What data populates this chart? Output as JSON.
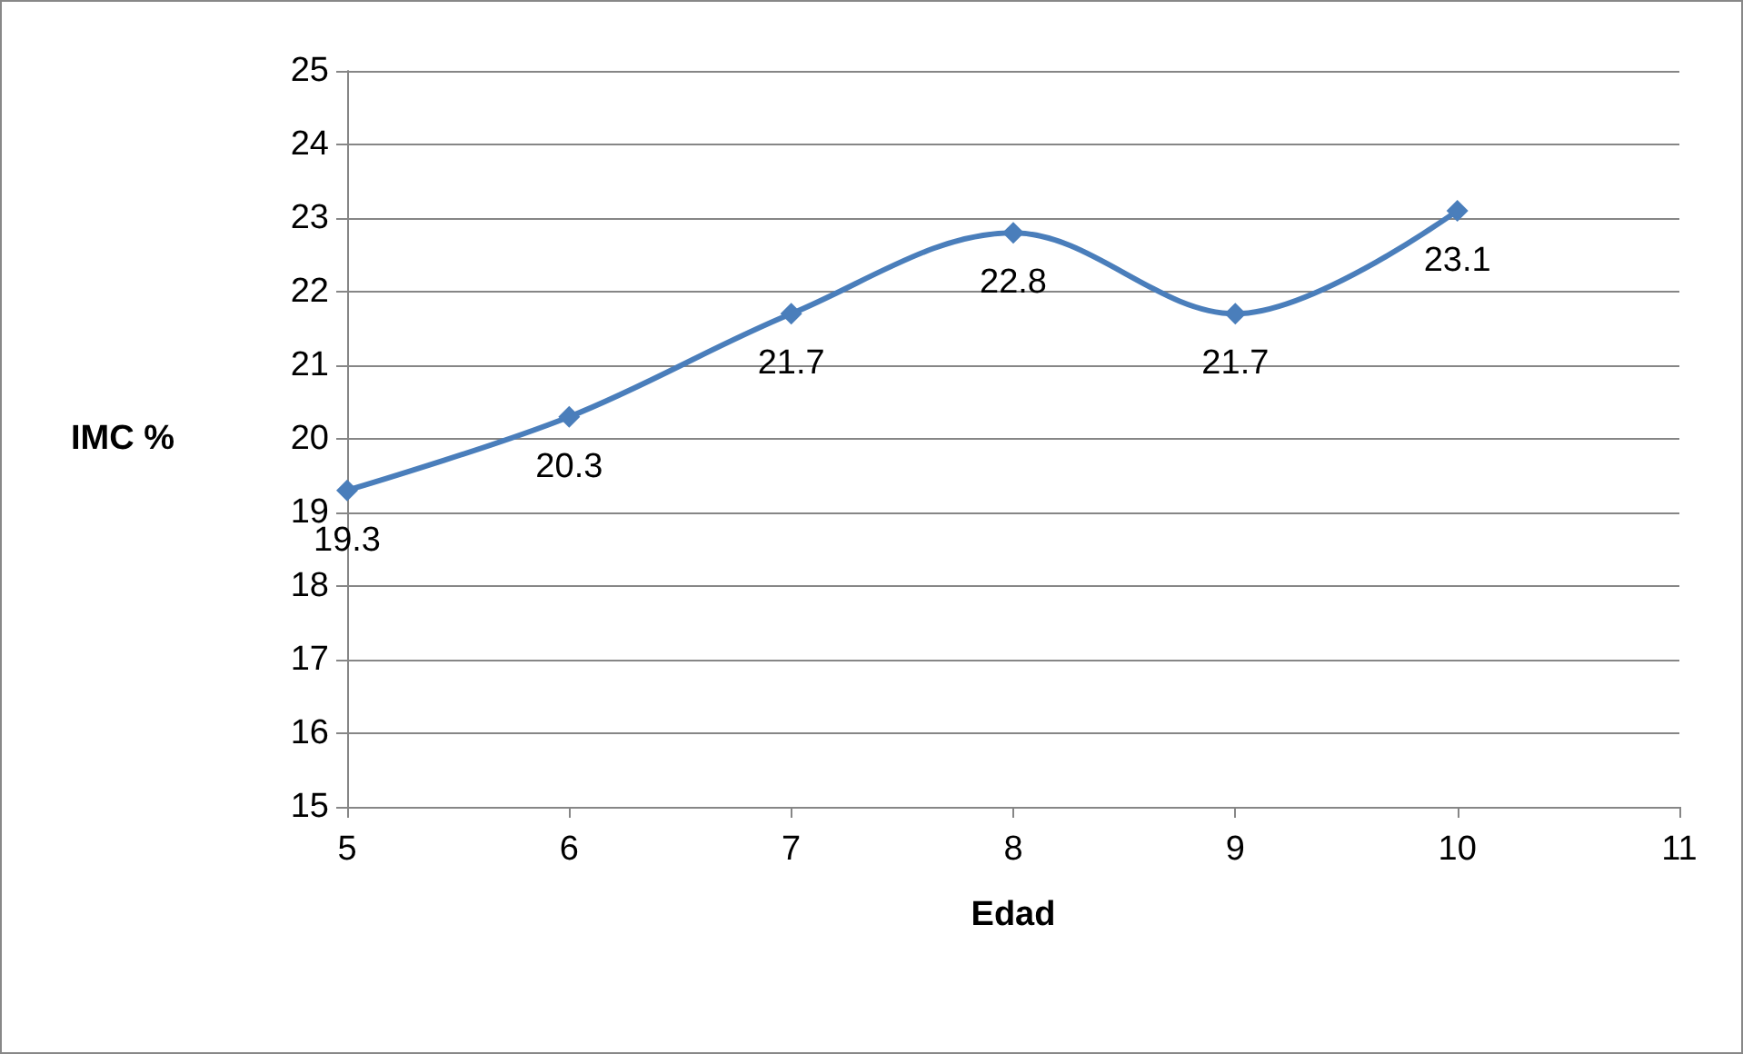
{
  "chart_data": {
    "type": "line",
    "xlabel": "Edad",
    "ylabel": "IMC %",
    "x": [
      5,
      6,
      7,
      8,
      9,
      10
    ],
    "series": [
      {
        "color": "#4a7ebb",
        "values": [
          19.3,
          20.3,
          21.7,
          22.8,
          21.7,
          23.1
        ]
      }
    ],
    "xlim": [
      5,
      11
    ],
    "xticks": [
      5,
      6,
      7,
      8,
      9,
      10,
      11
    ],
    "ylim": [
      15,
      25
    ],
    "yticks": [
      15,
      16,
      17,
      18,
      19,
      20,
      21,
      22,
      23,
      24,
      25
    ],
    "grid": "y",
    "marker": "diamond",
    "line_style": "solid",
    "data_labels": true
  }
}
